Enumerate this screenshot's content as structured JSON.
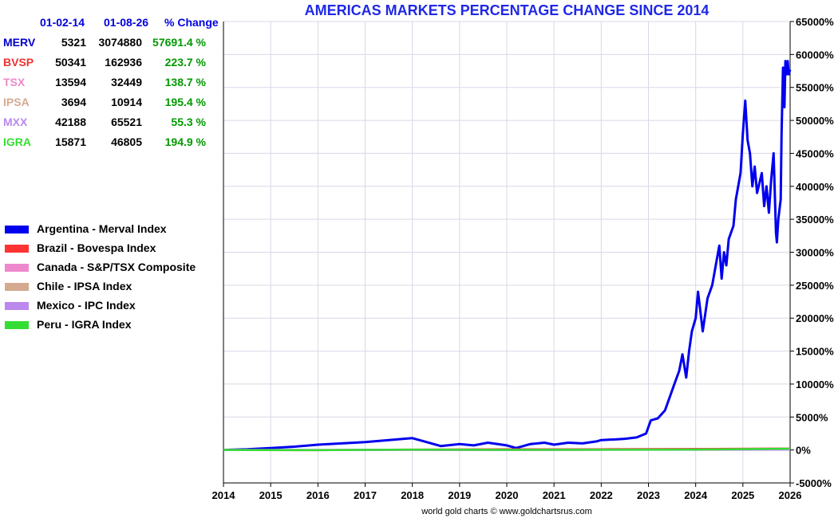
{
  "chart_data": {
    "type": "line",
    "title": "AMERICAS MARKETS PERCENTAGE CHANGE SINCE 2014",
    "xlim": [
      2014,
      2026
    ],
    "ylim": [
      -5000,
      65000
    ],
    "x_ticks": [
      "2014",
      "2015",
      "2016",
      "2017",
      "2018",
      "2019",
      "2020",
      "2021",
      "2022",
      "2023",
      "2024",
      "2025",
      "2026"
    ],
    "y_ticks": [
      {
        "v": -5000,
        "label": "-5000%"
      },
      {
        "v": 0,
        "label": "0%"
      },
      {
        "v": 5000,
        "label": "5000%"
      },
      {
        "v": 10000,
        "label": "10000%"
      },
      {
        "v": 15000,
        "label": "15000%"
      },
      {
        "v": 20000,
        "label": "20000%"
      },
      {
        "v": 25000,
        "label": "25000%"
      },
      {
        "v": 30000,
        "label": "30000%"
      },
      {
        "v": 35000,
        "label": "35000%"
      },
      {
        "v": 40000,
        "label": "40000%"
      },
      {
        "v": 45000,
        "label": "45000%"
      },
      {
        "v": 50000,
        "label": "50000%"
      },
      {
        "v": 55000,
        "label": "55000%"
      },
      {
        "v": 60000,
        "label": "60000%"
      },
      {
        "v": 65000,
        "label": "65000%"
      }
    ],
    "grid": true,
    "legend_position": "left",
    "series": [
      {
        "name": "Argentina - Merval Index",
        "color": "#0000ee",
        "x": [
          2014.0,
          2014.5,
          2015.0,
          2015.5,
          2016.0,
          2016.5,
          2017.0,
          2017.5,
          2018.0,
          2018.3,
          2018.6,
          2019.0,
          2019.3,
          2019.6,
          2020.0,
          2020.2,
          2020.5,
          2020.8,
          2021.0,
          2021.3,
          2021.6,
          2021.9,
          2022.0,
          2022.3,
          2022.5,
          2022.75,
          2022.95,
          2023.05,
          2023.2,
          2023.35,
          2023.45,
          2023.55,
          2023.65,
          2023.72,
          2023.8,
          2023.86,
          2023.92,
          2024.0,
          2024.05,
          2024.1,
          2024.15,
          2024.25,
          2024.35,
          2024.45,
          2024.5,
          2024.55,
          2024.6,
          2024.65,
          2024.7,
          2024.8,
          2024.85,
          2024.95,
          2025.0,
          2025.05,
          2025.1,
          2025.15,
          2025.2,
          2025.25,
          2025.3,
          2025.4,
          2025.45,
          2025.5,
          2025.55,
          2025.6,
          2025.65,
          2025.7,
          2025.72,
          2025.75,
          2025.8,
          2025.82,
          2025.85,
          2025.87,
          2025.88,
          2025.9,
          2025.93,
          2025.95,
          2025.97,
          2026.0
        ],
        "y": [
          0,
          100,
          300,
          500,
          800,
          1000,
          1200,
          1500,
          1800,
          1200,
          600,
          900,
          700,
          1100,
          700,
          300,
          900,
          1100,
          800,
          1100,
          1000,
          1300,
          1500,
          1600,
          1700,
          1900,
          2500,
          4500,
          4800,
          6000,
          8000,
          10000,
          12000,
          14500,
          11000,
          15000,
          18000,
          20000,
          24000,
          21000,
          18000,
          23000,
          25000,
          29000,
          31000,
          26000,
          30000,
          28000,
          32000,
          34000,
          38000,
          42000,
          48000,
          53000,
          47000,
          45000,
          40000,
          43000,
          39000,
          42000,
          37000,
          40000,
          36000,
          41000,
          45000,
          33000,
          31500,
          35000,
          38000,
          48000,
          58000,
          56000,
          52000,
          59000,
          57000,
          59000,
          57000,
          57691
        ]
      },
      {
        "name": "Brazil - Bovespa Index",
        "color": "#ff3333",
        "x": [
          2014,
          2016,
          2018,
          2020,
          2022,
          2024,
          2026
        ],
        "y": [
          0,
          -30,
          60,
          120,
          110,
          160,
          224
        ]
      },
      {
        "name": "Canada - S&P/TSX Composite",
        "color": "#ee88cc",
        "x": [
          2014,
          2016,
          2018,
          2020,
          2022,
          2024,
          2026
        ],
        "y": [
          0,
          -10,
          15,
          10,
          55,
          65,
          139
        ]
      },
      {
        "name": "Chile - IPSA Index",
        "color": "#d4aa90",
        "x": [
          2014,
          2016,
          2018,
          2020,
          2022,
          2024,
          2026
        ],
        "y": [
          0,
          5,
          50,
          -10,
          40,
          80,
          195
        ]
      },
      {
        "name": "Mexico - IPC Index",
        "color": "#bb88ee",
        "x": [
          2014,
          2016,
          2018,
          2020,
          2022,
          2024,
          2026
        ],
        "y": [
          0,
          5,
          15,
          -10,
          25,
          30,
          55
        ]
      },
      {
        "name": "Peru - IGRA Index",
        "color": "#33dd33",
        "x": [
          2014,
          2016,
          2018,
          2020,
          2022,
          2024,
          2026
        ],
        "y": [
          0,
          -35,
          50,
          20,
          35,
          60,
          195
        ]
      }
    ]
  },
  "table": {
    "header": {
      "start": "01-02-14",
      "end": "01-08-26",
      "change": "% Change"
    },
    "rows": [
      {
        "ticker": "MERV",
        "start": "5321",
        "end": "3074880",
        "change": "57691.4 %",
        "color": "#0000cc"
      },
      {
        "ticker": "BVSP",
        "start": "50341",
        "end": "162936",
        "change": "223.7 %",
        "color": "#ee3333"
      },
      {
        "ticker": "TSX",
        "start": "13594",
        "end": "32449",
        "change": "138.7 %",
        "color": "#ee88cc"
      },
      {
        "ticker": "IPSA",
        "start": "3694",
        "end": "10914",
        "change": "195.4 %",
        "color": "#d4aa90"
      },
      {
        "ticker": "MXX",
        "start": "42188",
        "end": "65521",
        "change": "55.3 %",
        "color": "#bb88ee"
      },
      {
        "ticker": "IGRA",
        "start": "15871",
        "end": "46805",
        "change": "194.9 %",
        "color": "#33dd33"
      }
    ]
  },
  "credit": "world gold charts © www.goldchartsrus.com"
}
